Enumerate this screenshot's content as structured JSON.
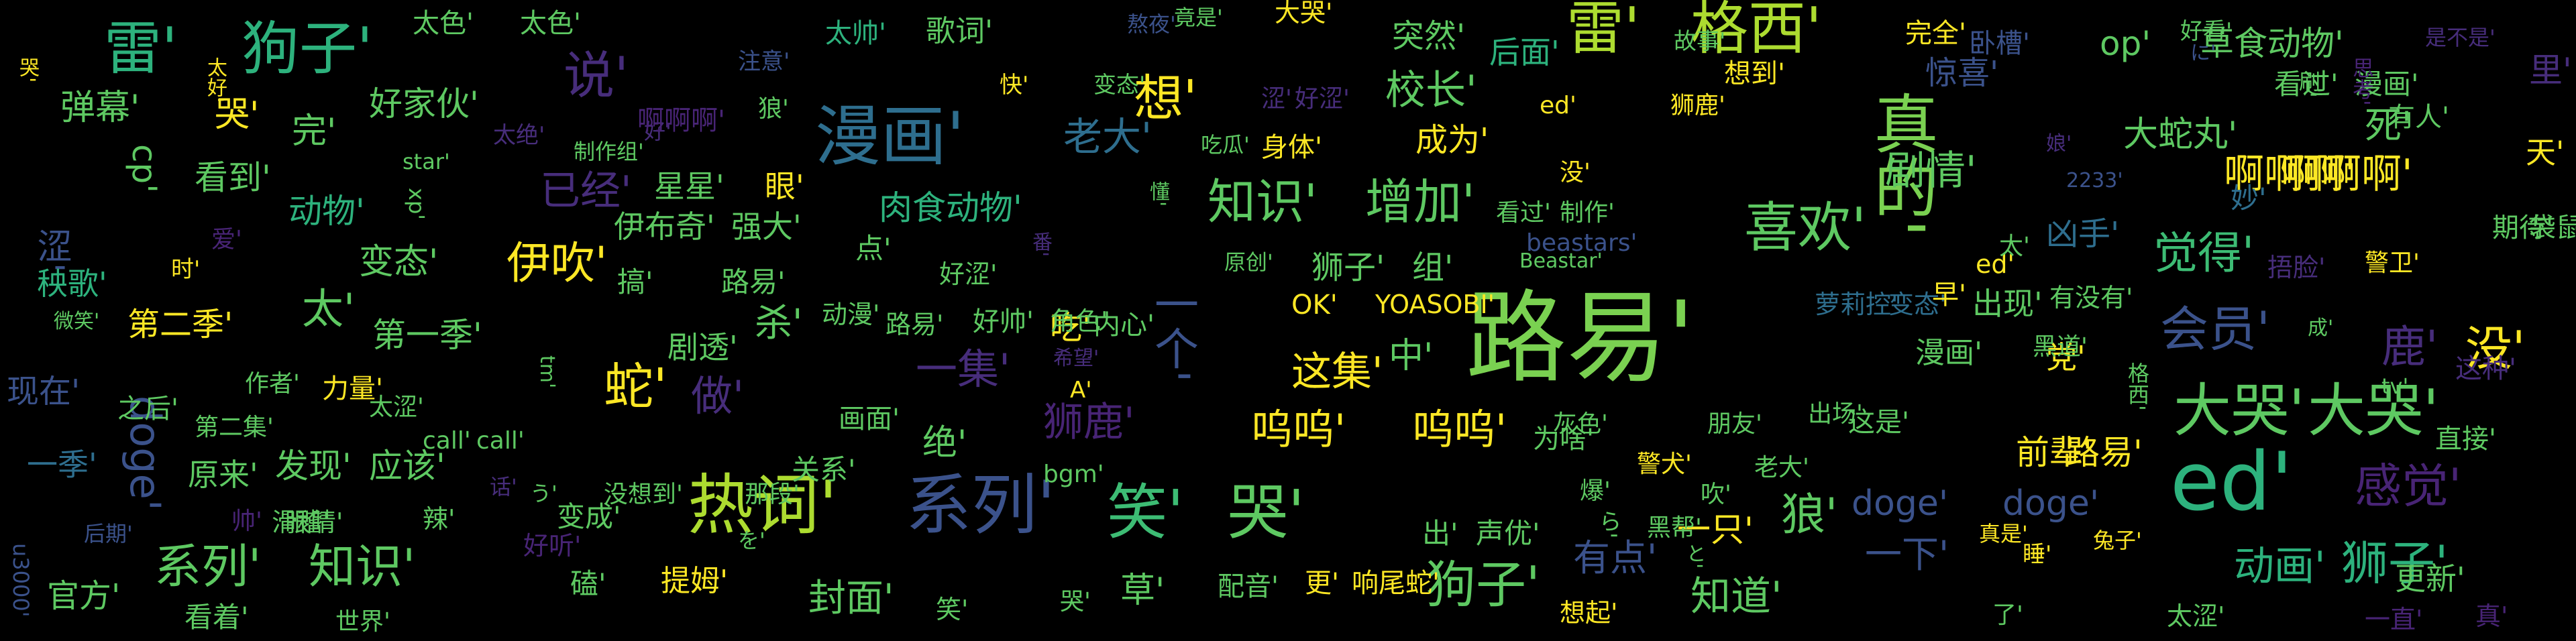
{
  "palette": [
    "#440154",
    "#3b528b",
    "#2c728e",
    "#21918c",
    "#27ad81",
    "#5ec962",
    "#addc30",
    "#fde725"
  ],
  "words": [
    {
      "text": "路易'",
      "c": "#7ad151"
    },
    {
      "text": "ed'",
      "c": "#2db27d"
    },
    {
      "text": "真的'",
      "c": "#7ad151"
    },
    {
      "text": "漫画'",
      "c": "#2e6e8e"
    },
    {
      "text": "热词'",
      "c": "#addc30"
    },
    {
      "text": "系列'",
      "c": "#3b528b"
    },
    {
      "text": "雷'",
      "c": "#2db27d"
    },
    {
      "text": "狗子'",
      "c": "#2db27d"
    },
    {
      "text": "雷'",
      "c": "#addc30"
    },
    {
      "text": "格西'",
      "c": "#addc30"
    },
    {
      "text": "笑'",
      "c": "#3dbc74"
    },
    {
      "text": "哭'",
      "c": "#5ec962"
    },
    {
      "text": "大哭'",
      "c": "#5ec962"
    },
    {
      "text": "大哭'",
      "c": "#5ec962"
    },
    {
      "text": "喜欢'",
      "c": "#5ec962"
    },
    {
      "text": "知识'",
      "c": "#5ec962"
    },
    {
      "text": "增加'",
      "c": "#5ec962"
    },
    {
      "text": "啊啊啊'",
      "c": "#fde725"
    },
    {
      "text": "啊啊啊'",
      "c": "#fde725"
    },
    {
      "text": "感觉'",
      "c": "#482475"
    },
    {
      "text": "狮子'",
      "c": "#2db27d"
    },
    {
      "text": "狗子'",
      "c": "#5ec962"
    },
    {
      "text": "呜呜'",
      "c": "#fde725"
    },
    {
      "text": "呜呜'",
      "c": "#fde725"
    },
    {
      "text": "蛇'",
      "c": "#fde725"
    },
    {
      "text": "想'",
      "c": "#fde725"
    },
    {
      "text": "说'",
      "c": "#472d7b"
    },
    {
      "text": "doge'",
      "c": "#3b528b"
    },
    {
      "text": "伊吹'",
      "c": "#fde725"
    },
    {
      "text": "一个'",
      "c": "#3b528b"
    },
    {
      "text": "会员'",
      "c": "#3b528b"
    },
    {
      "text": "鹿'",
      "c": "#472d7b"
    },
    {
      "text": "没'",
      "c": "#fde725"
    },
    {
      "text": "觉得'",
      "c": "#3dbc74"
    },
    {
      "text": "系列'",
      "c": "#5ec962"
    },
    {
      "text": "知识'",
      "c": "#5ec962"
    },
    {
      "text": "狮鹿'",
      "c": "#482475"
    },
    {
      "text": "动画'",
      "c": "#2db27d"
    },
    {
      "text": "知道'",
      "c": "#5ec962"
    },
    {
      "text": "路易'",
      "c": "#fde725"
    },
    {
      "text": "前辈'",
      "c": "#fde725"
    },
    {
      "text": "封面'",
      "c": "#5ec962"
    },
    {
      "text": "已经'",
      "c": "#472d7b"
    },
    {
      "text": "剧情'",
      "c": "#5ec962"
    },
    {
      "text": "校长'",
      "c": "#5ec962"
    },
    {
      "text": "老大'",
      "c": "#2e6e8e"
    },
    {
      "text": "突然'",
      "c": "#5ec962"
    },
    {
      "text": "成为'",
      "c": "#fde725"
    },
    {
      "text": "弹幕'",
      "c": "#5ec962"
    },
    {
      "text": "哭'",
      "c": "#fde725"
    },
    {
      "text": "完'",
      "c": "#5ec962"
    },
    {
      "text": "好家伙'",
      "c": "#5ec962"
    },
    {
      "text": "cp'",
      "c": "#5ec962"
    },
    {
      "text": "看到'",
      "c": "#5ec962"
    },
    {
      "text": "涩'",
      "c": "#3b528b"
    },
    {
      "text": "动物'",
      "c": "#2db27d"
    },
    {
      "text": "变态'",
      "c": "#5ec962"
    },
    {
      "text": "太'",
      "c": "#5ec962"
    },
    {
      "text": "秧歌'",
      "c": "#2db27d"
    },
    {
      "text": "第二季'",
      "c": "#fde725"
    },
    {
      "text": "第一季'",
      "c": "#5ec962"
    },
    {
      "text": "现在'",
      "c": "#3b528b"
    },
    {
      "text": "一季'",
      "c": "#2e6e8e"
    },
    {
      "text": "原来'",
      "c": "#5ec962"
    },
    {
      "text": "发现'",
      "c": "#5ec962"
    },
    {
      "text": "应该'",
      "c": "#5ec962"
    },
    {
      "text": "官方'",
      "c": "#5ec962"
    },
    {
      "text": "看着'",
      "c": "#5ec962"
    },
    {
      "text": "做'",
      "c": "#472d7b"
    },
    {
      "text": "一集'",
      "c": "#472d7b"
    },
    {
      "text": "这集'",
      "c": "#fde725"
    },
    {
      "text": "中'",
      "c": "#5ec962"
    },
    {
      "text": "杀'",
      "c": "#5ec962"
    },
    {
      "text": "吃'",
      "c": "#fde725"
    },
    {
      "text": "绝'",
      "c": "#5ec962"
    },
    {
      "text": "狼'",
      "c": "#5ec962"
    },
    {
      "text": "草'",
      "c": "#5ec962"
    },
    {
      "text": "一只'",
      "c": "#fde725"
    },
    {
      "text": "有点'",
      "c": "#3b528b"
    },
    {
      "text": "一下'",
      "c": "#3b528b"
    },
    {
      "text": "doge'",
      "c": "#3b528b"
    },
    {
      "text": "doge'",
      "c": "#3b528b"
    },
    {
      "text": "更新'",
      "c": "#5ec962"
    },
    {
      "text": "肉食动物'",
      "c": "#2db27d"
    },
    {
      "text": "大蛇丸'",
      "c": "#5ec962"
    },
    {
      "text": "死'",
      "c": "#5ec962"
    },
    {
      "text": "天'",
      "c": "#fde725"
    },
    {
      "text": "里'",
      "c": "#472d7b"
    },
    {
      "text": "op'",
      "c": "#5ec962"
    },
    {
      "text": "草食动物'",
      "c": "#5ec962"
    },
    {
      "text": "完全'",
      "c": "#fde725"
    },
    {
      "text": "太色'",
      "c": "#5ec962"
    },
    {
      "text": "太色'",
      "c": "#5ec962"
    },
    {
      "text": "歌词'",
      "c": "#5ec962"
    },
    {
      "text": "太帅'",
      "c": "#2db27d"
    },
    {
      "text": "大哭'",
      "c": "#fde725"
    },
    {
      "text": "后面'",
      "c": "#2db27d"
    },
    {
      "text": "看过'",
      "c": "#5ec962"
    },
    {
      "text": "漫画'",
      "c": "#5ec962"
    },
    {
      "text": "有人'",
      "c": "#5ec962"
    },
    {
      "text": "惊喜'",
      "c": "#3b528b"
    },
    {
      "text": "卧槽'",
      "c": "#3b528b"
    },
    {
      "text": "想到'",
      "c": "#fde725"
    },
    {
      "text": "身体'",
      "c": "#fde725"
    },
    {
      "text": "眼'",
      "c": "#fde725"
    },
    {
      "text": "星星'",
      "c": "#5ec962"
    },
    {
      "text": "伊布奇'",
      "c": "#5ec962"
    },
    {
      "text": "强大'",
      "c": "#5ec962"
    },
    {
      "text": "狮子'",
      "c": "#5ec962"
    },
    {
      "text": "组'",
      "c": "#5ec962"
    },
    {
      "text": "点'",
      "c": "#5ec962"
    },
    {
      "text": "凶手'",
      "c": "#2e6e8e"
    },
    {
      "text": "妙'",
      "c": "#2e6e8e"
    },
    {
      "text": "出现'",
      "c": "#5ec962"
    },
    {
      "text": "党'",
      "c": "#fde725"
    },
    {
      "text": "漫画'",
      "c": "#5ec962"
    },
    {
      "text": "这种'",
      "c": "#472d7b"
    },
    {
      "text": "直接'",
      "c": "#5ec962"
    },
    {
      "text": "动漫'",
      "c": "#5ec962"
    },
    {
      "text": "路易'",
      "c": "#5ec962"
    },
    {
      "text": "好帅'",
      "c": "#5ec962"
    },
    {
      "text": "角色'",
      "c": "#5ec962"
    },
    {
      "text": "内心'",
      "c": "#5ec962"
    },
    {
      "text": "好涩'",
      "c": "#5ec962"
    },
    {
      "text": "路易'",
      "c": "#5ec962"
    },
    {
      "text": "搞'",
      "c": "#5ec962"
    },
    {
      "text": "剧透'",
      "c": "#5ec962"
    },
    {
      "text": "画面'",
      "c": "#5ec962"
    },
    {
      "text": "力量'",
      "c": "#fde725"
    },
    {
      "text": "作者'",
      "c": "#5ec962"
    },
    {
      "text": "太涩'",
      "c": "#5ec962"
    },
    {
      "text": "第二集'",
      "c": "#5ec962"
    },
    {
      "text": "关系'",
      "c": "#5ec962"
    },
    {
      "text": "没想到'",
      "c": "#5ec962"
    },
    {
      "text": "那段'",
      "c": "#5ec962"
    },
    {
      "text": "bgm'",
      "c": "#5ec962"
    },
    {
      "text": "call'",
      "c": "#5ec962"
    },
    {
      "text": "call'",
      "c": "#5ec962"
    },
    {
      "text": "滑稽'",
      "c": "#5ec962"
    },
    {
      "text": "眼睛'",
      "c": "#5ec962"
    },
    {
      "text": "辣'",
      "c": "#5ec962"
    },
    {
      "text": "磕'",
      "c": "#5ec962"
    },
    {
      "text": "提姆'",
      "c": "#fde725"
    },
    {
      "text": "好听'",
      "c": "#482475"
    },
    {
      "text": "变成'",
      "c": "#5ec962"
    },
    {
      "text": "帅'",
      "c": "#482475"
    },
    {
      "text": "世界'",
      "c": "#5ec962"
    },
    {
      "text": "笑'",
      "c": "#5ec962"
    },
    {
      "text": "哭'",
      "c": "#5ec962"
    },
    {
      "text": "配音'",
      "c": "#5ec962"
    },
    {
      "text": "更'",
      "c": "#fde725"
    },
    {
      "text": "响尾蛇'",
      "c": "#fde725"
    },
    {
      "text": "想起'",
      "c": "#fde725"
    },
    {
      "text": "出'",
      "c": "#5ec962"
    },
    {
      "text": "声优'",
      "c": "#5ec962"
    },
    {
      "text": "为啥'",
      "c": "#5ec962"
    },
    {
      "text": "灰色'",
      "c": "#5ec962"
    },
    {
      "text": "警犬'",
      "c": "#fde725"
    },
    {
      "text": "朋友'",
      "c": "#5ec962"
    },
    {
      "text": "出场'",
      "c": "#5ec962"
    },
    {
      "text": "这是'",
      "c": "#5ec962"
    },
    {
      "text": "黑帮'",
      "c": "#5ec962"
    },
    {
      "text": "老大'",
      "c": "#5ec962"
    },
    {
      "text": "吹'",
      "c": "#5ec962"
    },
    {
      "text": "爆'",
      "c": "#5ec962"
    },
    {
      "text": "OK'",
      "c": "#fde725"
    },
    {
      "text": "YOASOBI'",
      "c": "#fde725"
    },
    {
      "text": "萝莉控'",
      "c": "#2e6e8e"
    },
    {
      "text": "变态'",
      "c": "#2e6e8e"
    },
    {
      "text": "早'",
      "c": "#fde725"
    },
    {
      "text": "有没有'",
      "c": "#5ec962"
    },
    {
      "text": "期待'",
      "c": "#5ec962"
    },
    {
      "text": "袋鼠'",
      "c": "#5ec962"
    },
    {
      "text": "警卫'",
      "c": "#fde725"
    },
    {
      "text": "捂脸'",
      "c": "#472d7b"
    },
    {
      "text": "ed'",
      "c": "#fde725"
    },
    {
      "text": "太'",
      "c": "#5ec962"
    },
    {
      "text": "beastars'",
      "c": "#3b528b"
    },
    {
      "text": "Beastar'",
      "c": "#5ec962"
    },
    {
      "text": "没'",
      "c": "#fde725"
    },
    {
      "text": "看过'",
      "c": "#5ec962"
    },
    {
      "text": "制作'",
      "c": "#5ec962"
    },
    {
      "text": "ed'",
      "c": "#fde725"
    },
    {
      "text": "狮鹿'",
      "c": "#fde725"
    },
    {
      "text": "好涩'",
      "c": "#472d7b"
    },
    {
      "text": "涩'",
      "c": "#472d7b"
    },
    {
      "text": "吃瓜'",
      "c": "#5ec962"
    },
    {
      "text": "快'",
      "c": "#fde725"
    },
    {
      "text": "变态'",
      "c": "#5ec962"
    },
    {
      "text": "狼'",
      "c": "#5ec962"
    },
    {
      "text": "注意'",
      "c": "#3b528b"
    },
    {
      "text": "熬夜'",
      "c": "#3b528b"
    },
    {
      "text": "竟是'",
      "c": "#5ec962"
    },
    {
      "text": "太好'",
      "c": "#fde725"
    },
    {
      "text": "哭'",
      "c": "#fde725"
    },
    {
      "text": "太绝'",
      "c": "#472d7b"
    },
    {
      "text": "制作组'",
      "c": "#5ec962"
    },
    {
      "text": "好'",
      "c": "#472d7b"
    },
    {
      "text": "啊啊啊'",
      "c": "#482475"
    },
    {
      "text": "star'",
      "c": "#5ec962"
    },
    {
      "text": "xp'",
      "c": "#5ec962"
    },
    {
      "text": "爱'",
      "c": "#482475"
    },
    {
      "text": "时'",
      "c": "#fde725"
    },
    {
      "text": "微笑'",
      "c": "#5ec962"
    },
    {
      "text": "之后'",
      "c": "#5ec962"
    },
    {
      "text": "后期'",
      "c": "#3b528b"
    },
    {
      "text": "u3000'",
      "c": "#3b528b"
    },
    {
      "text": "话'",
      "c": "#472d7b"
    },
    {
      "text": "tm'",
      "c": "#5ec962"
    },
    {
      "text": "懂'",
      "c": "#5ec962"
    },
    {
      "text": "番'",
      "c": "#472d7b"
    },
    {
      "text": "A'",
      "c": "#fde725"
    },
    {
      "text": "希望'",
      "c": "#472d7b"
    },
    {
      "text": "原创'",
      "c": "#5ec962"
    },
    {
      "text": "故事'",
      "c": "#5ec962"
    },
    {
      "text": "好看'",
      "c": "#5ec962"
    },
    {
      "text": "是不是'",
      "c": "#472d7b"
    },
    {
      "text": "刷'",
      "c": "#5ec962"
    },
    {
      "text": "思考'",
      "c": "#482475"
    },
    {
      "text": "娘'",
      "c": "#472d7b"
    },
    {
      "text": "2233'",
      "c": "#3b528b"
    },
    {
      "text": "tv'",
      "c": "#5ec962"
    },
    {
      "text": "成'",
      "c": "#5ec962"
    },
    {
      "text": "格西'",
      "c": "#5ec962"
    },
    {
      "text": "黑道'",
      "c": "#5ec962"
    },
    {
      "text": "真是'",
      "c": "#fde725"
    },
    {
      "text": "睡'",
      "c": "#fde725"
    },
    {
      "text": "兔子'",
      "c": "#fde725"
    },
    {
      "text": "太涩'",
      "c": "#5ec962"
    },
    {
      "text": "一直'",
      "c": "#482475"
    },
    {
      "text": "真'",
      "c": "#482475"
    },
    {
      "text": "了'",
      "c": "#5ec962"
    },
    {
      "text": "ら'",
      "c": "#5ec962"
    },
    {
      "text": "と'",
      "c": "#5ec962"
    },
    {
      "text": "う'",
      "c": "#5ec962"
    },
    {
      "text": "を'",
      "c": "#5ec962"
    },
    {
      "text": "に'",
      "c": "#3b528b"
    }
  ]
}
